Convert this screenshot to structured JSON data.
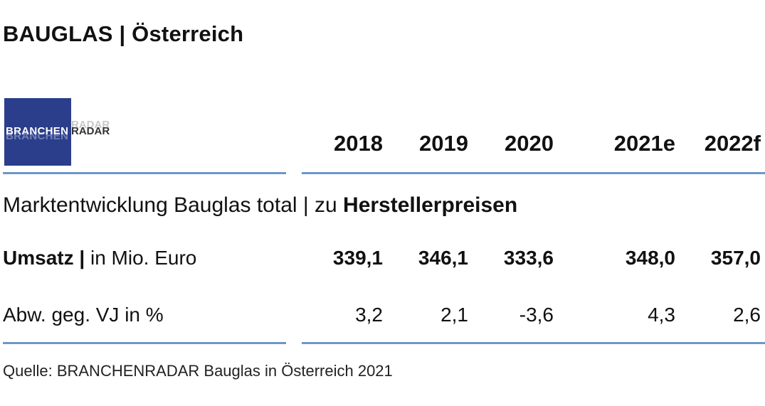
{
  "title": "BAUGLAS | Österreich",
  "logo": {
    "text": "BRANCHEN",
    "suffix": "RADAR"
  },
  "table": {
    "columns": [
      "2018",
      "2019",
      "2020",
      "2021e",
      "2022f"
    ],
    "subtitle_regular": "Marktentwicklung Bauglas total | zu ",
    "subtitle_bold": "Herstellerpreisen",
    "rows": [
      {
        "label_bold": "Umsatz |",
        "label_regular": " in Mio. Euro",
        "values": [
          "339,1",
          "346,1",
          "333,6",
          "348,0",
          "357,0"
        ]
      },
      {
        "label_bold": "",
        "label_regular": "Abw. geg. VJ in %",
        "values": [
          "3,2",
          "2,1",
          "-3,6",
          "4,3",
          "2,6"
        ]
      }
    ]
  },
  "source": "Quelle: BRANCHENRADAR Bauglas in Österreich 2021",
  "colors": {
    "rule": "#6f96c8",
    "logo_bg": "#2a3e8c"
  },
  "chart_data": {
    "type": "table",
    "title": "BAUGLAS | Österreich",
    "categories": [
      "2018",
      "2019",
      "2020",
      "2021e",
      "2022f"
    ],
    "series": [
      {
        "name": "Umsatz | in Mio. Euro",
        "values": [
          339.1,
          346.1,
          333.6,
          348.0,
          357.0
        ]
      },
      {
        "name": "Abw. geg. VJ in %",
        "values": [
          3.2,
          2.1,
          -3.6,
          4.3,
          2.6
        ]
      }
    ]
  }
}
